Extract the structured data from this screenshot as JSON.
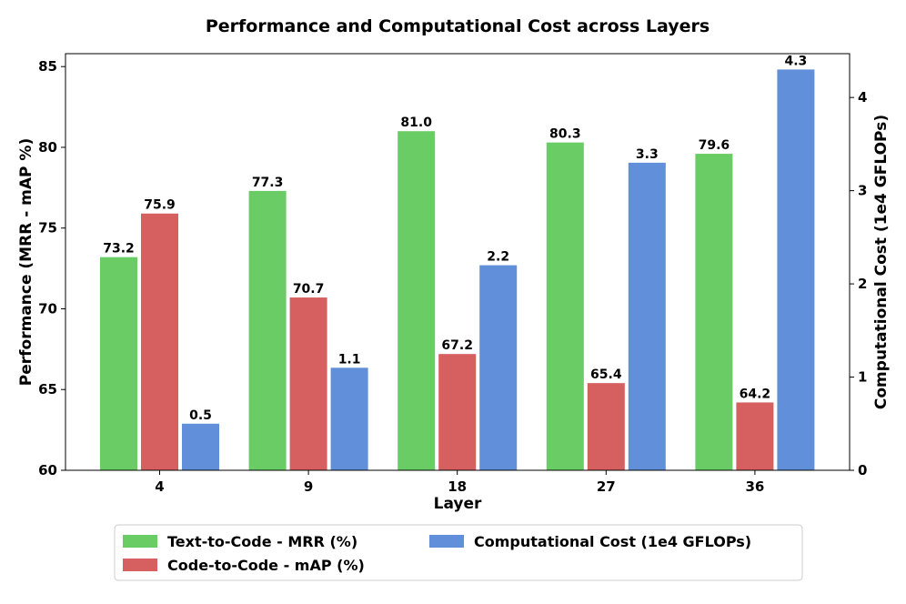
{
  "chart_data": {
    "type": "bar",
    "title": "Performance and Computational Cost across Layers",
    "xlabel": "Layer",
    "ylabel": "Performance (MRR - mAP %)",
    "y2label": "Computational Cost (1e4 GFLOPs)",
    "categories": [
      "4",
      "9",
      "18",
      "27",
      "36"
    ],
    "ylim": [
      60,
      85.8
    ],
    "y2lim": [
      0,
      4.47
    ],
    "yticks": [
      "60",
      "65",
      "70",
      "75",
      "80",
      "85"
    ],
    "y2ticks": [
      "0",
      "1",
      "2",
      "3",
      "4"
    ],
    "series": [
      {
        "name": "Text-to-Code - MRR (%)",
        "axis": "left",
        "color": "#6acc65",
        "values": [
          73.2,
          77.3,
          81.0,
          80.3,
          79.6
        ],
        "labels": [
          "73.2",
          "77.3",
          "81.0",
          "80.3",
          "79.6"
        ]
      },
      {
        "name": "Code-to-Code - mAP (%)",
        "axis": "left",
        "color": "#d65f5f",
        "values": [
          75.9,
          70.7,
          67.2,
          65.4,
          64.2
        ],
        "labels": [
          "75.9",
          "70.7",
          "67.2",
          "65.4",
          "64.2"
        ]
      },
      {
        "name": "Computational Cost (1e4 GFLOPs)",
        "axis": "right",
        "color": "#618fd9",
        "values": [
          0.5,
          1.1,
          2.2,
          3.3,
          4.3
        ],
        "labels": [
          "0.5",
          "1.1",
          "2.2",
          "3.3",
          "4.3"
        ]
      }
    ],
    "legend": [
      "Text-to-Code - MRR (%)",
      "Code-to-Code - mAP (%)",
      "Computational Cost (1e4 GFLOPs)"
    ],
    "legend_position": "bottom-center"
  }
}
